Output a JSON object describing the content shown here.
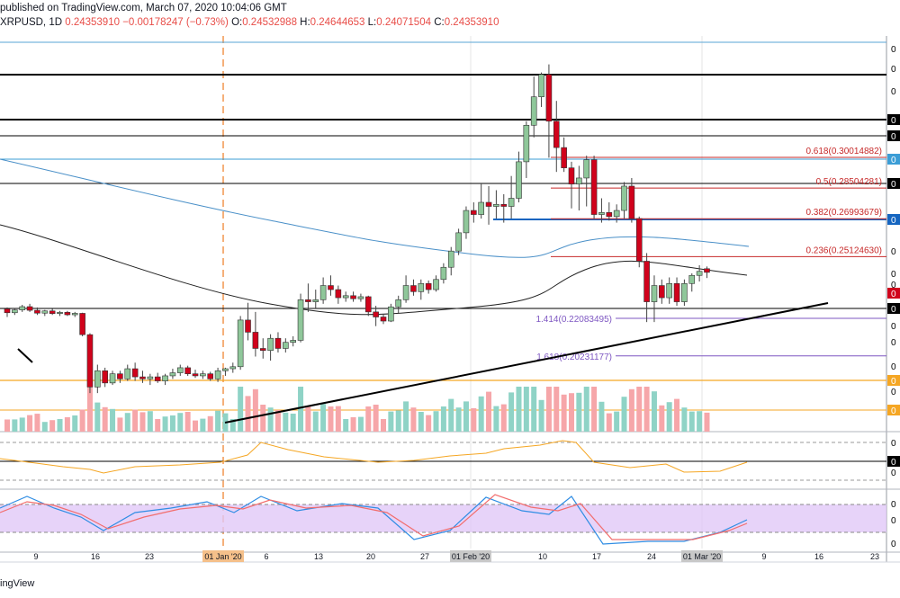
{
  "header": {
    "line1": "published on TradingView.com, March 07, 2020 10:04:06 GMT",
    "symbol": "XRPUSD, 1D",
    "last": "0.24353910",
    "change": "−0.00178247 (−0.73%)",
    "open_label": "O:",
    "open": "0.24532988",
    "high_label": "H:",
    "high": "0.24644653",
    "low_label": "L:",
    "low": "0.24071504",
    "close_label": "C:",
    "close": "0.24353910"
  },
  "footer_brand": "ingView",
  "colors": {
    "up": "#8fc79a",
    "down": "#d0021b",
    "vol_up": "#8fd3c6",
    "vol_down": "#f6a6a9",
    "sma_black": "#222222",
    "sma_blue": "#4a90c8",
    "trendline": "#000000",
    "rsi": "#f5a623",
    "stoch_k": "#2f8de4",
    "stoch_d": "#f26d6d",
    "stoch_band": "#e1c8f7",
    "fib_line": "#c62828",
    "fib_ext": "#7e57c2",
    "support_orange": "#f5a623",
    "vertical_marker": "#f5b07a"
  },
  "chart_data": {
    "type": "candlestick",
    "title": "XRPUSD, 1D",
    "x_tick_labels": [
      "9",
      "16",
      "23",
      "01 Jan '20",
      "6",
      "13",
      "20",
      "27",
      "01 Feb '20",
      "10",
      "17",
      "24",
      "01 Mar '20",
      "9",
      "16",
      "23"
    ],
    "candles_estimated": [
      {
        "date": "2019-12-06",
        "o": 0.2255,
        "h": 0.2262,
        "l": 0.2215,
        "c": 0.2236
      },
      {
        "date": "2019-12-07",
        "o": 0.2236,
        "h": 0.226,
        "l": 0.2225,
        "c": 0.225
      },
      {
        "date": "2019-12-08",
        "o": 0.225,
        "h": 0.2275,
        "l": 0.224,
        "c": 0.2266
      },
      {
        "date": "2019-12-09",
        "o": 0.2266,
        "h": 0.228,
        "l": 0.224,
        "c": 0.2248
      },
      {
        "date": "2019-12-10",
        "o": 0.2248,
        "h": 0.2262,
        "l": 0.2225,
        "c": 0.2234
      },
      {
        "date": "2019-12-11",
        "o": 0.2234,
        "h": 0.225,
        "l": 0.222,
        "c": 0.2245
      },
      {
        "date": "2019-12-12",
        "o": 0.2245,
        "h": 0.2255,
        "l": 0.2225,
        "c": 0.2232
      },
      {
        "date": "2019-12-13",
        "o": 0.2232,
        "h": 0.2245,
        "l": 0.222,
        "c": 0.2238
      },
      {
        "date": "2019-12-14",
        "o": 0.2238,
        "h": 0.2245,
        "l": 0.222,
        "c": 0.2226
      },
      {
        "date": "2019-12-15",
        "o": 0.2226,
        "h": 0.224,
        "l": 0.2215,
        "c": 0.2233
      },
      {
        "date": "2019-12-16",
        "o": 0.2233,
        "h": 0.2236,
        "l": 0.212,
        "c": 0.2128
      },
      {
        "date": "2019-12-17",
        "o": 0.2128,
        "h": 0.2135,
        "l": 0.184,
        "c": 0.187
      },
      {
        "date": "2019-12-18",
        "o": 0.187,
        "h": 0.198,
        "l": 0.184,
        "c": 0.195
      },
      {
        "date": "2019-12-19",
        "o": 0.195,
        "h": 0.1965,
        "l": 0.187,
        "c": 0.189
      },
      {
        "date": "2019-12-20",
        "o": 0.189,
        "h": 0.195,
        "l": 0.188,
        "c": 0.1935
      },
      {
        "date": "2019-12-21",
        "o": 0.1935,
        "h": 0.195,
        "l": 0.189,
        "c": 0.191
      },
      {
        "date": "2019-12-22",
        "o": 0.191,
        "h": 0.198,
        "l": 0.19,
        "c": 0.196
      },
      {
        "date": "2019-12-23",
        "o": 0.196,
        "h": 0.199,
        "l": 0.19,
        "c": 0.192
      },
      {
        "date": "2019-12-24",
        "o": 0.192,
        "h": 0.195,
        "l": 0.189,
        "c": 0.191
      },
      {
        "date": "2019-12-25",
        "o": 0.191,
        "h": 0.1935,
        "l": 0.188,
        "c": 0.192
      },
      {
        "date": "2019-12-26",
        "o": 0.192,
        "h": 0.194,
        "l": 0.189,
        "c": 0.19
      },
      {
        "date": "2019-12-27",
        "o": 0.19,
        "h": 0.1935,
        "l": 0.188,
        "c": 0.1925
      },
      {
        "date": "2019-12-28",
        "o": 0.1925,
        "h": 0.196,
        "l": 0.191,
        "c": 0.194
      },
      {
        "date": "2019-12-29",
        "o": 0.194,
        "h": 0.198,
        "l": 0.1925,
        "c": 0.1965
      },
      {
        "date": "2019-12-30",
        "o": 0.1965,
        "h": 0.1975,
        "l": 0.1925,
        "c": 0.1935
      },
      {
        "date": "2019-12-31",
        "o": 0.1935,
        "h": 0.1955,
        "l": 0.1915,
        "c": 0.1925
      },
      {
        "date": "2020-01-01",
        "o": 0.1925,
        "h": 0.195,
        "l": 0.191,
        "c": 0.1935
      },
      {
        "date": "2020-01-02",
        "o": 0.1935,
        "h": 0.1945,
        "l": 0.19,
        "c": 0.191
      },
      {
        "date": "2020-01-03",
        "o": 0.191,
        "h": 0.1965,
        "l": 0.1895,
        "c": 0.195
      },
      {
        "date": "2020-01-04",
        "o": 0.195,
        "h": 0.1965,
        "l": 0.1925,
        "c": 0.196
      },
      {
        "date": "2020-01-05",
        "o": 0.196,
        "h": 0.199,
        "l": 0.194,
        "c": 0.197
      },
      {
        "date": "2020-01-06",
        "o": 0.197,
        "h": 0.222,
        "l": 0.1955,
        "c": 0.22
      },
      {
        "date": "2020-01-07",
        "o": 0.22,
        "h": 0.2285,
        "l": 0.21,
        "c": 0.214
      },
      {
        "date": "2020-01-08",
        "o": 0.214,
        "h": 0.224,
        "l": 0.202,
        "c": 0.206
      },
      {
        "date": "2020-01-09",
        "o": 0.206,
        "h": 0.211,
        "l": 0.201,
        "c": 0.205
      },
      {
        "date": "2020-01-10",
        "o": 0.205,
        "h": 0.213,
        "l": 0.2,
        "c": 0.211
      },
      {
        "date": "2020-01-11",
        "o": 0.211,
        "h": 0.214,
        "l": 0.204,
        "c": 0.206
      },
      {
        "date": "2020-01-12",
        "o": 0.206,
        "h": 0.211,
        "l": 0.204,
        "c": 0.209
      },
      {
        "date": "2020-01-13",
        "o": 0.209,
        "h": 0.212,
        "l": 0.207,
        "c": 0.21
      },
      {
        "date": "2020-01-14",
        "o": 0.21,
        "h": 0.233,
        "l": 0.209,
        "c": 0.23
      },
      {
        "date": "2020-01-15",
        "o": 0.23,
        "h": 0.238,
        "l": 0.224,
        "c": 0.229
      },
      {
        "date": "2020-01-16",
        "o": 0.229,
        "h": 0.235,
        "l": 0.226,
        "c": 0.23
      },
      {
        "date": "2020-01-17",
        "o": 0.23,
        "h": 0.241,
        "l": 0.228,
        "c": 0.237
      },
      {
        "date": "2020-01-18",
        "o": 0.237,
        "h": 0.242,
        "l": 0.232,
        "c": 0.235
      },
      {
        "date": "2020-01-19",
        "o": 0.235,
        "h": 0.237,
        "l": 0.228,
        "c": 0.231
      },
      {
        "date": "2020-01-20",
        "o": 0.231,
        "h": 0.234,
        "l": 0.229,
        "c": 0.232
      },
      {
        "date": "2020-01-21",
        "o": 0.232,
        "h": 0.234,
        "l": 0.229,
        "c": 0.2305
      },
      {
        "date": "2020-01-22",
        "o": 0.2305,
        "h": 0.233,
        "l": 0.229,
        "c": 0.2315
      },
      {
        "date": "2020-01-23",
        "o": 0.2315,
        "h": 0.232,
        "l": 0.222,
        "c": 0.224
      },
      {
        "date": "2020-01-24",
        "o": 0.224,
        "h": 0.227,
        "l": 0.217,
        "c": 0.2215
      },
      {
        "date": "2020-01-25",
        "o": 0.2215,
        "h": 0.223,
        "l": 0.218,
        "c": 0.2195
      },
      {
        "date": "2020-01-26",
        "o": 0.2195,
        "h": 0.228,
        "l": 0.219,
        "c": 0.2265
      },
      {
        "date": "2020-01-27",
        "o": 0.2265,
        "h": 0.232,
        "l": 0.2235,
        "c": 0.23
      },
      {
        "date": "2020-01-28",
        "o": 0.23,
        "h": 0.242,
        "l": 0.2285,
        "c": 0.237
      },
      {
        "date": "2020-01-29",
        "o": 0.237,
        "h": 0.24,
        "l": 0.232,
        "c": 0.234
      },
      {
        "date": "2020-01-30",
        "o": 0.234,
        "h": 0.24,
        "l": 0.23,
        "c": 0.238
      },
      {
        "date": "2020-01-31",
        "o": 0.238,
        "h": 0.2395,
        "l": 0.233,
        "c": 0.235
      },
      {
        "date": "2020-02-01",
        "o": 0.235,
        "h": 0.242,
        "l": 0.234,
        "c": 0.24
      },
      {
        "date": "2020-02-02",
        "o": 0.24,
        "h": 0.248,
        "l": 0.238,
        "c": 0.246
      },
      {
        "date": "2020-02-03",
        "o": 0.246,
        "h": 0.256,
        "l": 0.242,
        "c": 0.254
      },
      {
        "date": "2020-02-04",
        "o": 0.254,
        "h": 0.265,
        "l": 0.252,
        "c": 0.263
      },
      {
        "date": "2020-02-05",
        "o": 0.263,
        "h": 0.276,
        "l": 0.26,
        "c": 0.274
      },
      {
        "date": "2020-02-06",
        "o": 0.274,
        "h": 0.278,
        "l": 0.268,
        "c": 0.272
      },
      {
        "date": "2020-02-07",
        "o": 0.272,
        "h": 0.287,
        "l": 0.27,
        "c": 0.278
      },
      {
        "date": "2020-02-08",
        "o": 0.278,
        "h": 0.286,
        "l": 0.267,
        "c": 0.276
      },
      {
        "date": "2020-02-09",
        "o": 0.276,
        "h": 0.284,
        "l": 0.27,
        "c": 0.277
      },
      {
        "date": "2020-02-10",
        "o": 0.277,
        "h": 0.282,
        "l": 0.268,
        "c": 0.276
      },
      {
        "date": "2020-02-11",
        "o": 0.276,
        "h": 0.291,
        "l": 0.27,
        "c": 0.28
      },
      {
        "date": "2020-02-12",
        "o": 0.28,
        "h": 0.303,
        "l": 0.278,
        "c": 0.298
      },
      {
        "date": "2020-02-13",
        "o": 0.298,
        "h": 0.318,
        "l": 0.29,
        "c": 0.316
      },
      {
        "date": "2020-02-14",
        "o": 0.316,
        "h": 0.34,
        "l": 0.31,
        "c": 0.33
      },
      {
        "date": "2020-02-15",
        "o": 0.33,
        "h": 0.342,
        "l": 0.325,
        "c": 0.341
      },
      {
        "date": "2020-02-16",
        "o": 0.341,
        "h": 0.346,
        "l": 0.3,
        "c": 0.318
      },
      {
        "date": "2020-02-17",
        "o": 0.318,
        "h": 0.328,
        "l": 0.293,
        "c": 0.305
      },
      {
        "date": "2020-02-18",
        "o": 0.305,
        "h": 0.31,
        "l": 0.293,
        "c": 0.295
      },
      {
        "date": "2020-02-19",
        "o": 0.295,
        "h": 0.298,
        "l": 0.275,
        "c": 0.287
      },
      {
        "date": "2020-02-20",
        "o": 0.287,
        "h": 0.296,
        "l": 0.274,
        "c": 0.29
      },
      {
        "date": "2020-02-21",
        "o": 0.29,
        "h": 0.301,
        "l": 0.276,
        "c": 0.299
      },
      {
        "date": "2020-02-22",
        "o": 0.299,
        "h": 0.301,
        "l": 0.27,
        "c": 0.272
      },
      {
        "date": "2020-02-23",
        "o": 0.272,
        "h": 0.28,
        "l": 0.268,
        "c": 0.273
      },
      {
        "date": "2020-02-24",
        "o": 0.273,
        "h": 0.278,
        "l": 0.269,
        "c": 0.271
      },
      {
        "date": "2020-02-25",
        "o": 0.271,
        "h": 0.277,
        "l": 0.268,
        "c": 0.274
      },
      {
        "date": "2020-02-26",
        "o": 0.274,
        "h": 0.288,
        "l": 0.27,
        "c": 0.286
      },
      {
        "date": "2020-02-27",
        "o": 0.286,
        "h": 0.29,
        "l": 0.268,
        "c": 0.27
      },
      {
        "date": "2020-02-28",
        "o": 0.27,
        "h": 0.271,
        "l": 0.246,
        "c": 0.249
      },
      {
        "date": "2020-02-29",
        "o": 0.249,
        "h": 0.253,
        "l": 0.219,
        "c": 0.229
      },
      {
        "date": "2020-03-01",
        "o": 0.229,
        "h": 0.242,
        "l": 0.219,
        "c": 0.237
      },
      {
        "date": "2020-03-02",
        "o": 0.237,
        "h": 0.24,
        "l": 0.228,
        "c": 0.231
      },
      {
        "date": "2020-03-03",
        "o": 0.231,
        "h": 0.241,
        "l": 0.228,
        "c": 0.238
      },
      {
        "date": "2020-03-04",
        "o": 0.238,
        "h": 0.241,
        "l": 0.227,
        "c": 0.229
      },
      {
        "date": "2020-03-05",
        "o": 0.229,
        "h": 0.24,
        "l": 0.227,
        "c": 0.238
      },
      {
        "date": "2020-03-06",
        "o": 0.238,
        "h": 0.243,
        "l": 0.234,
        "c": 0.242
      },
      {
        "date": "2020-03-07",
        "o": 0.242,
        "h": 0.247,
        "l": 0.239,
        "c": 0.244
      },
      {
        "date": "2020-03-08",
        "o": 0.2453,
        "h": 0.2464,
        "l": 0.2407,
        "c": 0.2435
      }
    ],
    "fib_retracements": [
      {
        "label": "0.618(0.30014882)",
        "value": 0.30014882
      },
      {
        "label": "0.5(0.28504281)",
        "value": 0.28504281
      },
      {
        "label": "0.382(0.26993679)",
        "value": 0.26993679
      },
      {
        "label": "0.236(0.25124630)",
        "value": 0.2512463
      }
    ],
    "fib_extensions": [
      {
        "label": "1.414(0.22083495)",
        "value": 0.22083495
      },
      {
        "label": "1.618(0.20231177)",
        "value": 0.20231177
      }
    ],
    "axis_tag_text": "0"
  }
}
